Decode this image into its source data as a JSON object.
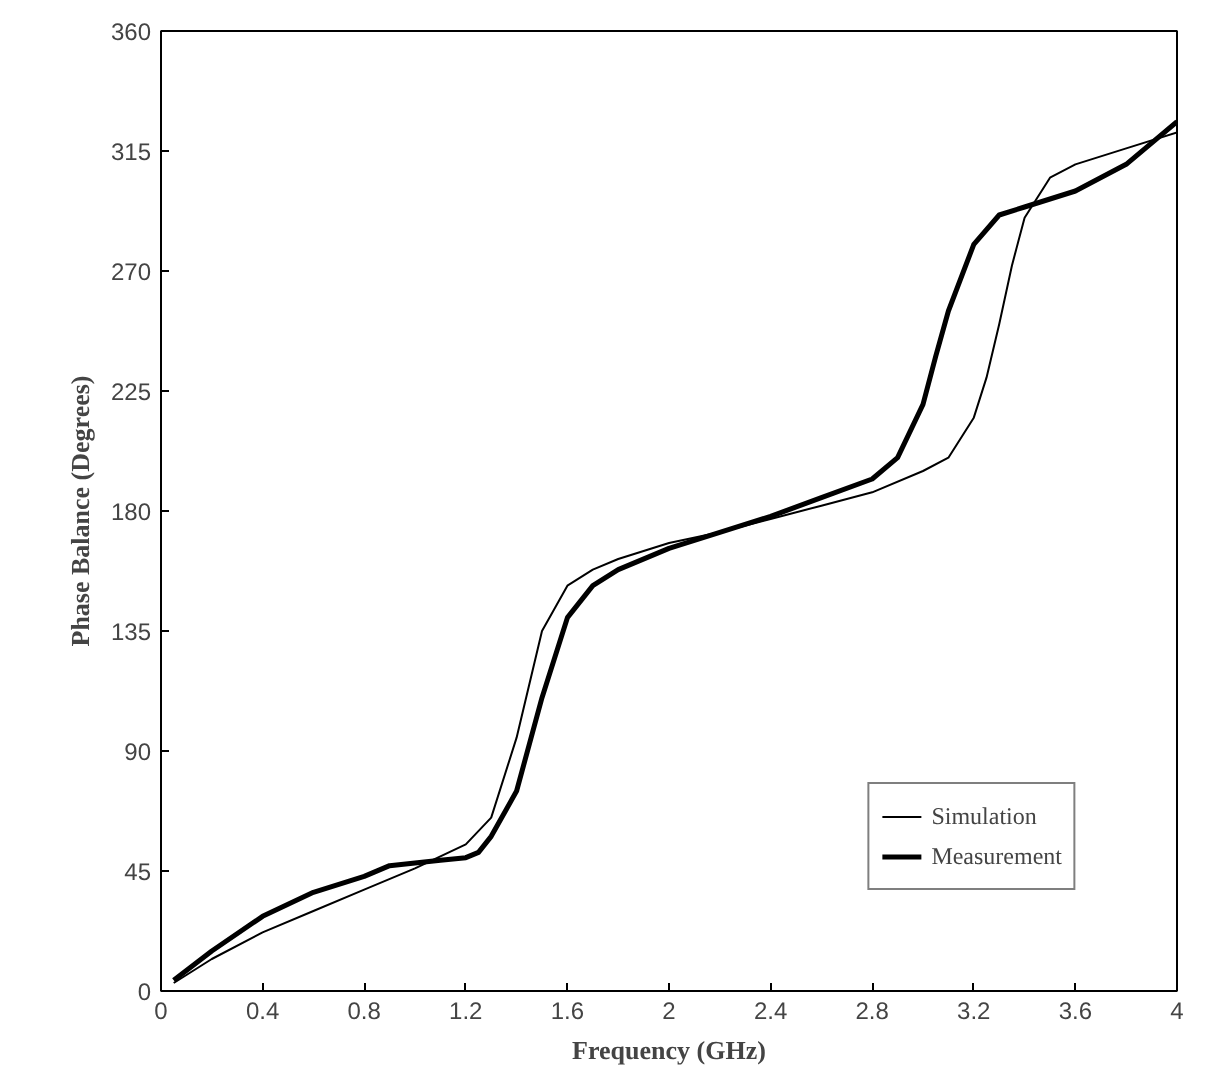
{
  "chart_data": {
    "type": "line",
    "xlabel": "Frequency (GHz)",
    "ylabel": "Phase Balance (Degrees)",
    "xlim": [
      0,
      4
    ],
    "ylim": [
      0,
      360
    ],
    "xticks": [
      0,
      0.4,
      0.8,
      1.2,
      1.6,
      2,
      2.4,
      2.8,
      3.2,
      3.6,
      4
    ],
    "yticks": [
      0,
      45,
      90,
      135,
      180,
      225,
      270,
      315,
      360
    ],
    "grid": false,
    "legend": "bottom right",
    "line_style": "solid",
    "marker": "none",
    "series": [
      {
        "name": "Simulation",
        "color": "#000000",
        "x": [
          0.05,
          0.2,
          0.4,
          0.6,
          0.8,
          1.0,
          1.2,
          1.3,
          1.4,
          1.5,
          1.6,
          1.7,
          1.8,
          2.0,
          2.2,
          2.4,
          2.6,
          2.8,
          3.0,
          3.1,
          3.2,
          3.25,
          3.3,
          3.35,
          3.4,
          3.5,
          3.6,
          3.8,
          4.0
        ],
        "values": [
          3,
          12,
          22,
          30,
          38,
          46,
          55,
          65,
          95,
          135,
          152,
          158,
          162,
          168,
          172,
          177,
          182,
          187,
          195,
          200,
          215,
          230,
          250,
          272,
          290,
          305,
          310,
          316,
          322
        ]
      },
      {
        "name": "Measurement",
        "color": "#000000",
        "x": [
          0.05,
          0.2,
          0.4,
          0.6,
          0.8,
          0.9,
          1.0,
          1.1,
          1.2,
          1.25,
          1.3,
          1.4,
          1.5,
          1.6,
          1.7,
          1.8,
          2.0,
          2.2,
          2.4,
          2.6,
          2.8,
          2.9,
          3.0,
          3.05,
          3.1,
          3.2,
          3.3,
          3.4,
          3.6,
          3.8,
          4.0
        ],
        "values": [
          4,
          15,
          28,
          37,
          43,
          47,
          48,
          49,
          50,
          52,
          58,
          75,
          110,
          140,
          152,
          158,
          166,
          172,
          178,
          185,
          192,
          200,
          220,
          238,
          255,
          280,
          291,
          294,
          300,
          310,
          326
        ]
      }
    ]
  }
}
